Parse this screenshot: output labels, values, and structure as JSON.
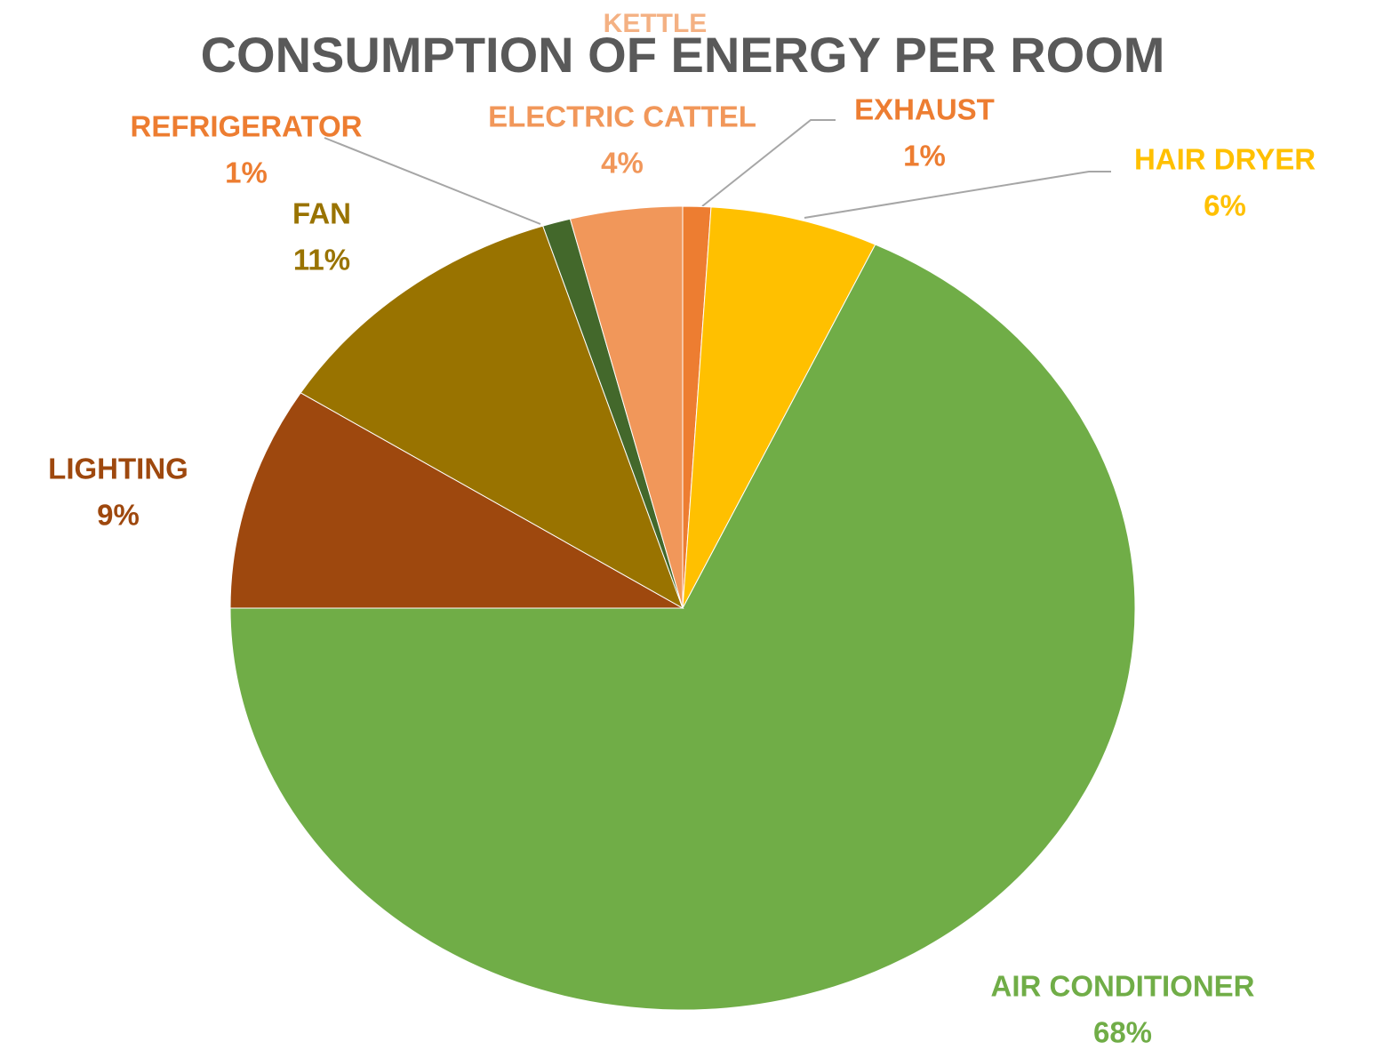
{
  "chart_data": {
    "type": "pie",
    "title": "CONSUMPTION OF ENERGY PER ROOM",
    "annotation": "KETTLE",
    "categories": [
      "EXHAUST",
      "HAIR DRYER",
      "AIR CONDITIONER",
      "LIGHTING",
      "FAN",
      "REFRIGERATOR",
      "ELECTRIC CATTEL"
    ],
    "values": [
      1,
      6,
      68,
      9,
      11,
      1,
      4
    ],
    "value_labels": [
      "1%",
      "6%",
      "68%",
      "9%",
      "11%",
      "1%",
      "4%"
    ],
    "colors": [
      "#ED7D31",
      "#FFC000",
      "#70AD47",
      "#9E480E",
      "#997300",
      "#43682B",
      "#F1975A"
    ]
  }
}
